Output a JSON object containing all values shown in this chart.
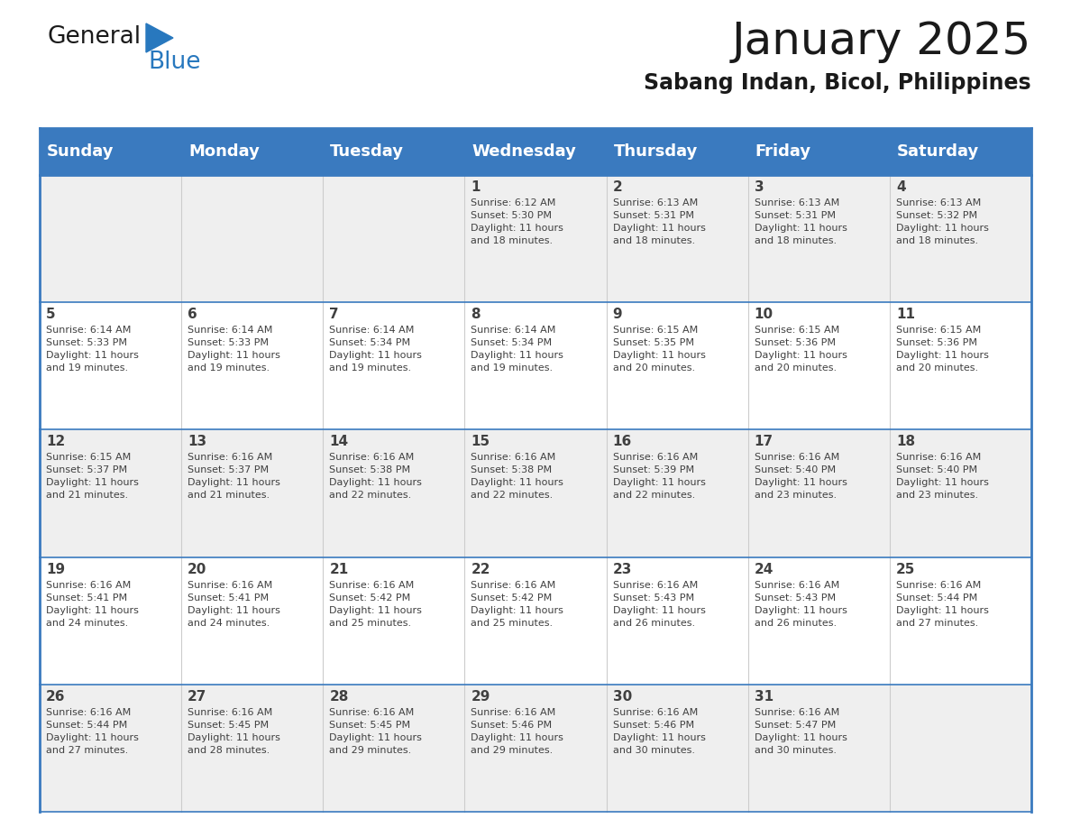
{
  "title": "January 2025",
  "subtitle": "Sabang Indan, Bicol, Philippines",
  "header_bg_color": "#3a7abf",
  "header_text_color": "#ffffff",
  "day_names": [
    "Sunday",
    "Monday",
    "Tuesday",
    "Wednesday",
    "Thursday",
    "Friday",
    "Saturday"
  ],
  "week_bg_even": "#efefef",
  "week_bg_odd": "#ffffff",
  "cell_border_color": "#3a7abf",
  "text_color": "#404040",
  "num_cols": 7,
  "calendar": [
    [
      "",
      "",
      "",
      "1\nSunrise: 6:12 AM\nSunset: 5:30 PM\nDaylight: 11 hours\nand 18 minutes.",
      "2\nSunrise: 6:13 AM\nSunset: 5:31 PM\nDaylight: 11 hours\nand 18 minutes.",
      "3\nSunrise: 6:13 AM\nSunset: 5:31 PM\nDaylight: 11 hours\nand 18 minutes.",
      "4\nSunrise: 6:13 AM\nSunset: 5:32 PM\nDaylight: 11 hours\nand 18 minutes."
    ],
    [
      "5\nSunrise: 6:14 AM\nSunset: 5:33 PM\nDaylight: 11 hours\nand 19 minutes.",
      "6\nSunrise: 6:14 AM\nSunset: 5:33 PM\nDaylight: 11 hours\nand 19 minutes.",
      "7\nSunrise: 6:14 AM\nSunset: 5:34 PM\nDaylight: 11 hours\nand 19 minutes.",
      "8\nSunrise: 6:14 AM\nSunset: 5:34 PM\nDaylight: 11 hours\nand 19 minutes.",
      "9\nSunrise: 6:15 AM\nSunset: 5:35 PM\nDaylight: 11 hours\nand 20 minutes.",
      "10\nSunrise: 6:15 AM\nSunset: 5:36 PM\nDaylight: 11 hours\nand 20 minutes.",
      "11\nSunrise: 6:15 AM\nSunset: 5:36 PM\nDaylight: 11 hours\nand 20 minutes."
    ],
    [
      "12\nSunrise: 6:15 AM\nSunset: 5:37 PM\nDaylight: 11 hours\nand 21 minutes.",
      "13\nSunrise: 6:16 AM\nSunset: 5:37 PM\nDaylight: 11 hours\nand 21 minutes.",
      "14\nSunrise: 6:16 AM\nSunset: 5:38 PM\nDaylight: 11 hours\nand 22 minutes.",
      "15\nSunrise: 6:16 AM\nSunset: 5:38 PM\nDaylight: 11 hours\nand 22 minutes.",
      "16\nSunrise: 6:16 AM\nSunset: 5:39 PM\nDaylight: 11 hours\nand 22 minutes.",
      "17\nSunrise: 6:16 AM\nSunset: 5:40 PM\nDaylight: 11 hours\nand 23 minutes.",
      "18\nSunrise: 6:16 AM\nSunset: 5:40 PM\nDaylight: 11 hours\nand 23 minutes."
    ],
    [
      "19\nSunrise: 6:16 AM\nSunset: 5:41 PM\nDaylight: 11 hours\nand 24 minutes.",
      "20\nSunrise: 6:16 AM\nSunset: 5:41 PM\nDaylight: 11 hours\nand 24 minutes.",
      "21\nSunrise: 6:16 AM\nSunset: 5:42 PM\nDaylight: 11 hours\nand 25 minutes.",
      "22\nSunrise: 6:16 AM\nSunset: 5:42 PM\nDaylight: 11 hours\nand 25 minutes.",
      "23\nSunrise: 6:16 AM\nSunset: 5:43 PM\nDaylight: 11 hours\nand 26 minutes.",
      "24\nSunrise: 6:16 AM\nSunset: 5:43 PM\nDaylight: 11 hours\nand 26 minutes.",
      "25\nSunrise: 6:16 AM\nSunset: 5:44 PM\nDaylight: 11 hours\nand 27 minutes."
    ],
    [
      "26\nSunrise: 6:16 AM\nSunset: 5:44 PM\nDaylight: 11 hours\nand 27 minutes.",
      "27\nSunrise: 6:16 AM\nSunset: 5:45 PM\nDaylight: 11 hours\nand 28 minutes.",
      "28\nSunrise: 6:16 AM\nSunset: 5:45 PM\nDaylight: 11 hours\nand 29 minutes.",
      "29\nSunrise: 6:16 AM\nSunset: 5:46 PM\nDaylight: 11 hours\nand 29 minutes.",
      "30\nSunrise: 6:16 AM\nSunset: 5:46 PM\nDaylight: 11 hours\nand 30 minutes.",
      "31\nSunrise: 6:16 AM\nSunset: 5:47 PM\nDaylight: 11 hours\nand 30 minutes.",
      ""
    ]
  ],
  "logo_text_general": "General",
  "logo_text_blue": "Blue",
  "title_fontsize": 36,
  "subtitle_fontsize": 17,
  "day_header_fontsize": 13,
  "day_num_fontsize": 11,
  "cell_text_fontsize": 8
}
